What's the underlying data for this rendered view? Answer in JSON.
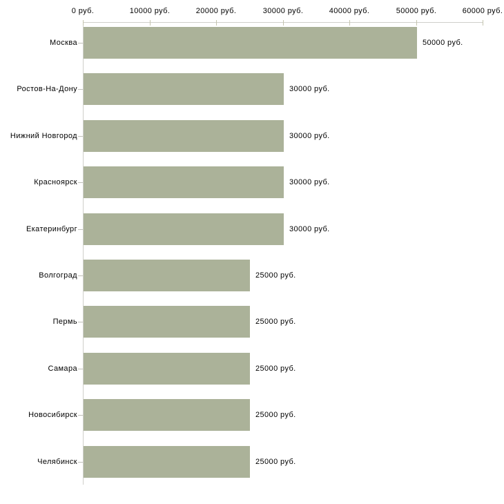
{
  "chart_data": {
    "type": "bar",
    "orientation": "horizontal",
    "title": "",
    "xlabel": "",
    "ylabel": "",
    "grid": false,
    "legend": null,
    "categories": [
      "Москва",
      "Ростов-На-Дону",
      "Нижний Новгород",
      "Красноярск",
      "Екатеринбург",
      "Волгоград",
      "Пермь",
      "Самара",
      "Новосибирск",
      "Челябинск"
    ],
    "values": [
      50000,
      30000,
      30000,
      30000,
      30000,
      25000,
      25000,
      25000,
      25000,
      25000
    ],
    "value_labels": [
      "50000 руб.",
      "30000 руб.",
      "30000 руб.",
      "30000 руб.",
      "30000 руб.",
      "25000 руб.",
      "25000 руб.",
      "25000 руб.",
      "25000 руб.",
      "25000 руб."
    ],
    "xlim": [
      0,
      60000
    ],
    "x_ticks": [
      0,
      10000,
      20000,
      30000,
      40000,
      50000,
      60000
    ],
    "x_tick_labels": [
      "0 руб.",
      "10000 руб.",
      "20000 руб.",
      "30000 руб.",
      "40000 руб.",
      "50000 руб.",
      "60000 руб."
    ],
    "axis_position": "top",
    "bar_color": "#abb299",
    "axis_color": "#cfcfca",
    "value_tick_color": "#c4c4ae",
    "category_tick_color": "#bfbfb7",
    "text_color": "#000000",
    "background_color": "#ffffff"
  }
}
